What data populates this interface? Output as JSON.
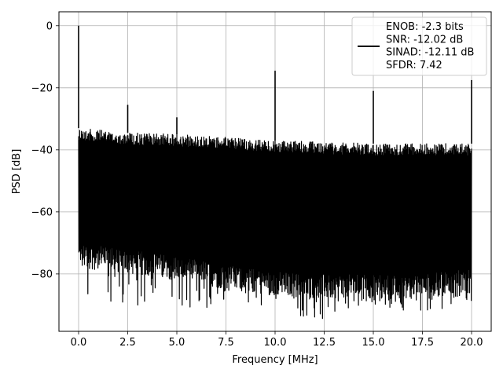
{
  "chart_data": {
    "type": "line",
    "xlabel": "Frequency [MHz]",
    "ylabel": "PSD [dB]",
    "xlim": [
      -1.0,
      21.0
    ],
    "ylim": [
      -98.5,
      4.5
    ],
    "x_ticks": [
      0.0,
      2.5,
      5.0,
      7.5,
      10.0,
      12.5,
      15.0,
      17.5,
      20.0
    ],
    "x_tick_labels": [
      "0.0",
      "2.5",
      "5.0",
      "7.5",
      "10.0",
      "12.5",
      "15.0",
      "17.5",
      "20.0"
    ],
    "y_ticks": [
      0,
      -20,
      -40,
      -60,
      -80
    ],
    "y_tick_labels": [
      "0",
      "−20",
      "−40",
      "−60",
      "−80"
    ],
    "grid": true,
    "legend_position": "top-right",
    "x_range": [
      0.0,
      20.0
    ],
    "noise_floor": {
      "x": [
        0.0,
        2.5,
        5.0,
        7.5,
        10.0,
        12.5,
        15.0,
        17.5,
        20.0
      ],
      "upper": [
        -33,
        -34.5,
        -35,
        -36,
        -37,
        -37.5,
        -38,
        -38,
        -38
      ],
      "lower": [
        -78,
        -80,
        -82,
        -85,
        -87,
        -88,
        -88,
        -88,
        -86
      ],
      "min_dips": [
        -90,
        -90,
        -91,
        -91,
        -93.5,
        -94.5,
        -90,
        -93,
        -90
      ]
    },
    "peaks": [
      {
        "x": 0.0,
        "y": 0.0
      },
      {
        "x": 2.5,
        "y": -25.5
      },
      {
        "x": 5.0,
        "y": -29.5
      },
      {
        "x": 10.0,
        "y": -14.5
      },
      {
        "x": 15.0,
        "y": -21.0
      },
      {
        "x": 20.0,
        "y": -17.5
      }
    ],
    "series": [
      {
        "name": "ENOB: -2.3 bits\nSNR: -12.02 dB\nSINAD: -12.11 dB\nSFDR: 7.42",
        "color": "#000000"
      }
    ],
    "legend_lines": [
      "ENOB: -2.3 bits",
      "SNR: -12.02 dB",
      "SINAD: -12.11 dB",
      "SFDR: 7.42"
    ]
  }
}
